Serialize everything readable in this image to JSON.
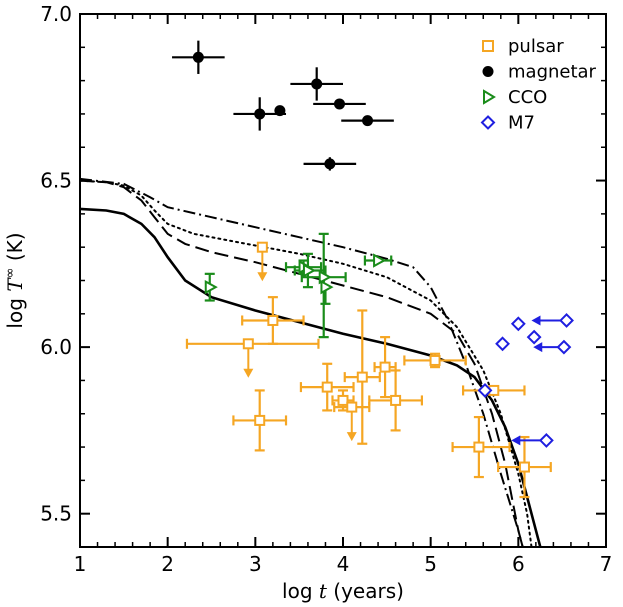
{
  "chart_data": {
    "type": "scatter",
    "xlabel": {
      "prefix": "log ",
      "var": "t",
      "suffix": "  (years)"
    },
    "ylabel": {
      "prefix": "log ",
      "var": "T",
      "sup": "∞",
      "suffix": " (K)"
    },
    "xlim": [
      1,
      7
    ],
    "ylim": [
      5.4,
      7.0
    ],
    "x_ticks": [
      1,
      2,
      3,
      4,
      5,
      6,
      7
    ],
    "y_ticks": [
      5.5,
      6.0,
      6.5,
      7.0
    ],
    "x_tick_labels": [
      "1",
      "2",
      "3",
      "4",
      "5",
      "6",
      "7"
    ],
    "y_tick_labels": [
      "5.5",
      "6.0",
      "6.5",
      "7.0"
    ],
    "legend_position": "top-right",
    "colors": {
      "pulsar": "#f5a623",
      "magnetar": "#000000",
      "cco": "#1a8c1a",
      "m7": "#1f1fe0"
    },
    "series": [
      {
        "name": "pulsar",
        "marker": "square",
        "points": [
          {
            "x": 3.08,
            "y": 6.3,
            "xerr": [
              0,
              0
            ],
            "yerr": [
              0,
              0
            ],
            "upper_limit": true
          },
          {
            "x": 3.2,
            "y": 6.08,
            "xerr": [
              0.35,
              0.35
            ],
            "yerr": [
              0.07,
              0.07
            ]
          },
          {
            "x": 2.92,
            "y": 6.01,
            "xerr": [
              0.7,
              0.8
            ],
            "yerr": [
              0,
              0
            ],
            "upper_limit": true
          },
          {
            "x": 3.05,
            "y": 5.78,
            "xerr": [
              0.3,
              0.3
            ],
            "yerr": [
              0.09,
              0.09
            ]
          },
          {
            "x": 3.82,
            "y": 5.88,
            "xerr": [
              0.3,
              0.3
            ],
            "yerr": [
              0.07,
              0.07
            ]
          },
          {
            "x": 4.0,
            "y": 5.84,
            "xerr": [
              0.12,
              0.12
            ],
            "yerr": [
              0.03,
              0.03
            ]
          },
          {
            "x": 4.1,
            "y": 5.82,
            "xerr": [
              0.2,
              0.2
            ],
            "yerr": [
              0,
              0
            ],
            "upper_limit": true
          },
          {
            "x": 4.22,
            "y": 5.91,
            "xerr": [
              0.2,
              0.2
            ],
            "yerr": [
              0.2,
              0.2
            ]
          },
          {
            "x": 4.48,
            "y": 5.94,
            "xerr": [
              0.12,
              0.12
            ],
            "yerr": [
              0.09,
              0.09
            ]
          },
          {
            "x": 4.6,
            "y": 5.84,
            "xerr": [
              0.3,
              0.3
            ],
            "yerr": [
              0.09,
              0.09
            ]
          },
          {
            "x": 5.05,
            "y": 5.96,
            "xerr": [
              0.35,
              0.35
            ],
            "yerr": [
              0.02,
              0.02
            ]
          },
          {
            "x": 5.55,
            "y": 5.7,
            "xerr": [
              0.3,
              0.35
            ],
            "yerr": [
              0.09,
              0.09
            ]
          },
          {
            "x": 5.72,
            "y": 5.87,
            "xerr": [
              0.35,
              0.35
            ],
            "yerr": [
              0,
              0
            ]
          },
          {
            "x": 6.07,
            "y": 5.64,
            "xerr": [
              0.3,
              0.3
            ],
            "yerr": [
              0.09,
              0.09
            ]
          }
        ]
      },
      {
        "name": "magnetar",
        "marker": "circle",
        "points": [
          {
            "x": 2.35,
            "y": 6.87,
            "xerr": [
              0.3,
              0.3
            ],
            "yerr": [
              0.05,
              0.05
            ]
          },
          {
            "x": 3.05,
            "y": 6.7,
            "xerr": [
              0.3,
              0.3
            ],
            "yerr": [
              0.05,
              0.05
            ]
          },
          {
            "x": 3.28,
            "y": 6.71,
            "xerr": [
              0,
              0
            ],
            "yerr": [
              0,
              0
            ]
          },
          {
            "x": 3.7,
            "y": 6.79,
            "xerr": [
              0.3,
              0.3
            ],
            "yerr": [
              0.05,
              0.05
            ]
          },
          {
            "x": 3.96,
            "y": 6.73,
            "xerr": [
              0.3,
              0.3
            ],
            "yerr": [
              0,
              0
            ]
          },
          {
            "x": 4.28,
            "y": 6.68,
            "xerr": [
              0.3,
              0.3
            ],
            "yerr": [
              0,
              0
            ]
          },
          {
            "x": 3.85,
            "y": 6.55,
            "xerr": [
              0.3,
              0.3
            ],
            "yerr": [
              0.02,
              0.02
            ]
          }
        ]
      },
      {
        "name": "CCO",
        "marker": "triangle-right",
        "points": [
          {
            "x": 2.48,
            "y": 6.18,
            "xerr": [
              0,
              0
            ],
            "yerr": [
              0.04,
              0.04
            ]
          },
          {
            "x": 3.55,
            "y": 6.24,
            "xerr": [
              0.2,
              0.2
            ],
            "yerr": [
              0.02,
              0.02
            ]
          },
          {
            "x": 3.6,
            "y": 6.23,
            "xerr": [
              0.15,
              0.2
            ],
            "yerr": [
              0.05,
              0.05
            ]
          },
          {
            "x": 3.78,
            "y": 6.21,
            "xerr": [
              0.25,
              0.25
            ],
            "yerr": [
              0.18,
              0.13
            ]
          },
          {
            "x": 3.8,
            "y": 6.18,
            "xerr": [
              0,
              0
            ],
            "yerr": [
              0.05,
              0
            ]
          },
          {
            "x": 4.4,
            "y": 6.26,
            "xerr": [
              0.15,
              0.15
            ],
            "yerr": [
              0,
              0
            ]
          }
        ]
      },
      {
        "name": "M7",
        "marker": "diamond",
        "points": [
          {
            "x": 5.62,
            "y": 5.87,
            "xerr": [
              0,
              0
            ],
            "yerr": [
              0,
              0
            ]
          },
          {
            "x": 5.82,
            "y": 6.01,
            "xerr": [
              0,
              0
            ],
            "yerr": [
              0,
              0
            ]
          },
          {
            "x": 6.0,
            "y": 6.07,
            "xerr": [
              0,
              0
            ],
            "yerr": [
              0,
              0
            ]
          },
          {
            "x": 6.18,
            "y": 6.03,
            "xerr": [
              0,
              0
            ],
            "yerr": [
              0,
              0
            ]
          },
          {
            "x": 6.55,
            "y": 6.08,
            "xerr": [
              0,
              0
            ],
            "yerr": [
              0,
              0
            ],
            "left_arrow": 0.4
          },
          {
            "x": 6.52,
            "y": 6.0,
            "xerr": [
              0,
              0
            ],
            "yerr": [
              0,
              0
            ],
            "left_arrow": 0.35
          },
          {
            "x": 6.32,
            "y": 5.72,
            "xerr": [
              0,
              0
            ],
            "yerr": [
              0,
              0
            ],
            "left_arrow": 0.4
          }
        ]
      }
    ],
    "curves": [
      {
        "style": "solid",
        "points": [
          [
            1.0,
            6.415
          ],
          [
            1.3,
            6.41
          ],
          [
            1.5,
            6.4
          ],
          [
            1.7,
            6.37
          ],
          [
            1.85,
            6.33
          ],
          [
            2.0,
            6.27
          ],
          [
            2.2,
            6.2
          ],
          [
            2.5,
            6.15
          ],
          [
            3.0,
            6.11
          ],
          [
            3.5,
            6.075
          ],
          [
            4.0,
            6.04
          ],
          [
            4.5,
            6.01
          ],
          [
            5.0,
            5.975
          ],
          [
            5.3,
            5.945
          ],
          [
            5.5,
            5.91
          ],
          [
            5.7,
            5.84
          ],
          [
            5.85,
            5.76
          ],
          [
            6.0,
            5.65
          ],
          [
            6.1,
            5.55
          ],
          [
            6.2,
            5.45
          ],
          [
            6.25,
            5.4
          ]
        ]
      },
      {
        "style": "dashed",
        "points": [
          [
            1.0,
            6.5
          ],
          [
            1.3,
            6.495
          ],
          [
            1.5,
            6.48
          ],
          [
            1.7,
            6.44
          ],
          [
            1.85,
            6.39
          ],
          [
            2.0,
            6.34
          ],
          [
            2.2,
            6.31
          ],
          [
            2.5,
            6.285
          ],
          [
            3.0,
            6.255
          ],
          [
            3.5,
            6.22
          ],
          [
            4.0,
            6.185
          ],
          [
            4.5,
            6.15
          ],
          [
            5.0,
            6.1
          ],
          [
            5.3,
            6.04
          ],
          [
            5.5,
            5.95
          ],
          [
            5.7,
            5.8
          ],
          [
            5.85,
            5.65
          ],
          [
            6.0,
            5.45
          ],
          [
            6.05,
            5.4
          ]
        ]
      },
      {
        "style": "dotted",
        "points": [
          [
            1.0,
            6.5
          ],
          [
            1.3,
            6.495
          ],
          [
            1.5,
            6.485
          ],
          [
            1.7,
            6.455
          ],
          [
            1.85,
            6.41
          ],
          [
            2.0,
            6.37
          ],
          [
            2.3,
            6.34
          ],
          [
            2.7,
            6.32
          ],
          [
            3.0,
            6.305
          ],
          [
            3.5,
            6.28
          ],
          [
            4.0,
            6.25
          ],
          [
            4.5,
            6.21
          ],
          [
            5.0,
            6.14
          ],
          [
            5.3,
            6.06
          ],
          [
            5.6,
            5.93
          ],
          [
            5.8,
            5.8
          ],
          [
            6.0,
            5.62
          ],
          [
            6.1,
            5.5
          ],
          [
            6.15,
            5.4
          ]
        ]
      },
      {
        "style": "dashdot",
        "points": [
          [
            1.0,
            6.505
          ],
          [
            1.5,
            6.49
          ],
          [
            1.8,
            6.45
          ],
          [
            2.0,
            6.42
          ],
          [
            2.5,
            6.39
          ],
          [
            3.0,
            6.36
          ],
          [
            3.5,
            6.33
          ],
          [
            4.0,
            6.3
          ],
          [
            4.5,
            6.265
          ],
          [
            4.8,
            6.24
          ],
          [
            5.0,
            6.18
          ],
          [
            5.2,
            6.08
          ],
          [
            5.4,
            5.95
          ],
          [
            5.6,
            5.8
          ],
          [
            5.8,
            5.62
          ],
          [
            6.0,
            5.45
          ],
          [
            6.05,
            5.4
          ]
        ]
      }
    ]
  }
}
